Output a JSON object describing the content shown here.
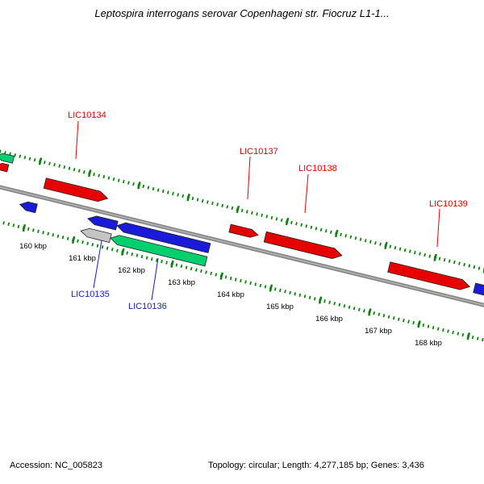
{
  "title": "Leptospira interrogans serovar Copenhageni str. Fiocruz L1-1...",
  "status_bar": {
    "accession": "Accession: NC_005823",
    "topology": "Topology: circular; Length: 4,277,185 bp; Genes: 3,436"
  },
  "ruler": {
    "unit_labels": [
      "160 kbp",
      "161 kbp",
      "162 kbp",
      "163 kbp",
      "164 kbp",
      "165 kbp",
      "166 kbp",
      "167 kbp",
      "168 kbp"
    ],
    "tick_color": "#118211"
  },
  "backbone": {
    "color": "#878787",
    "highlight": "#b2b2b2"
  },
  "features": {
    "labels": {
      "forward": [
        {
          "text": "LIC10134"
        },
        {
          "text": "LIC10137"
        },
        {
          "text": "LIC10138"
        },
        {
          "text": "LIC10139"
        }
      ],
      "reverse": [
        {
          "text": "LIC10135"
        },
        {
          "text": "LIC10136"
        }
      ]
    },
    "label_colors": {
      "forward": "#e60000",
      "reverse": "#1a1acc"
    },
    "arrow_colors": {
      "red": "#e60000",
      "blue": "#1a1ad9",
      "gray": "#c4c4c4",
      "green": "#00cf6e",
      "outline": "#222222"
    }
  }
}
